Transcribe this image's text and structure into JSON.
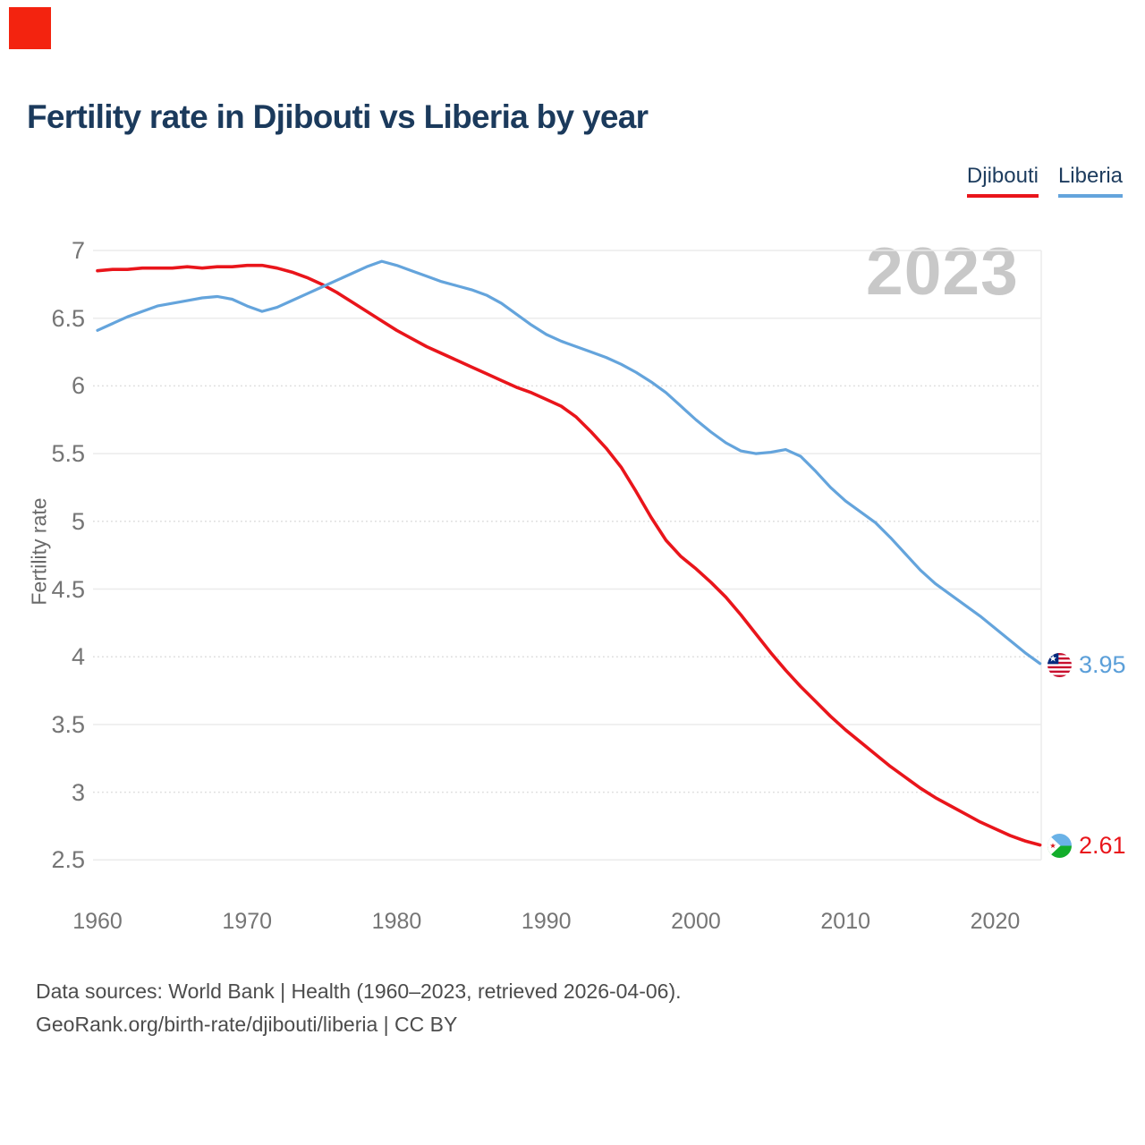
{
  "brand": {
    "color": "#f3230f"
  },
  "header": {
    "title": "Fertility rate in Djibouti vs Liberia by year"
  },
  "legend": {
    "items": [
      {
        "label": "Djibouti",
        "color": "#e9151b"
      },
      {
        "label": "Liberia",
        "color": "#64a4dc"
      }
    ]
  },
  "watermark": "2023",
  "end_labels": {
    "liberia": "3.95",
    "djibouti": "2.61"
  },
  "footer": {
    "line1": "Data sources: World Bank | Health (1960–2023, retrieved 2026-04-06).",
    "line2": "GeoRank.org/birth-rate/djibouti/liberia | CC BY"
  },
  "chart_data": {
    "type": "line",
    "title": "Fertility rate in Djibouti vs Liberia by year",
    "xlabel": "",
    "ylabel": "Fertility rate",
    "ylim": [
      2.5,
      7
    ],
    "grid": true,
    "legend_position": "top-right",
    "yticks": [
      7,
      6.5,
      6,
      5.5,
      5,
      4.5,
      4,
      3.5,
      3,
      2.5
    ],
    "xticks": [
      1960,
      1970,
      1980,
      1990,
      2000,
      2010,
      2020
    ],
    "x": [
      1960,
      1961,
      1962,
      1963,
      1964,
      1965,
      1966,
      1967,
      1968,
      1969,
      1970,
      1971,
      1972,
      1973,
      1974,
      1975,
      1976,
      1977,
      1978,
      1979,
      1980,
      1981,
      1982,
      1983,
      1984,
      1985,
      1986,
      1987,
      1988,
      1989,
      1990,
      1991,
      1992,
      1993,
      1994,
      1995,
      1996,
      1997,
      1998,
      1999,
      2000,
      2001,
      2002,
      2003,
      2004,
      2005,
      2006,
      2007,
      2008,
      2009,
      2010,
      2011,
      2012,
      2013,
      2014,
      2015,
      2016,
      2017,
      2018,
      2019,
      2020,
      2021,
      2022,
      2023
    ],
    "series": [
      {
        "name": "Djibouti",
        "color": "#e9151b",
        "values": [
          6.85,
          6.86,
          6.86,
          6.87,
          6.87,
          6.87,
          6.88,
          6.87,
          6.88,
          6.88,
          6.89,
          6.89,
          6.87,
          6.84,
          6.8,
          6.75,
          6.69,
          6.62,
          6.55,
          6.48,
          6.41,
          6.35,
          6.29,
          6.24,
          6.19,
          6.14,
          6.09,
          6.04,
          5.99,
          5.95,
          5.9,
          5.85,
          5.77,
          5.66,
          5.54,
          5.4,
          5.22,
          5.03,
          4.86,
          4.74,
          4.65,
          4.55,
          4.44,
          4.31,
          4.17,
          4.03,
          3.9,
          3.78,
          3.67,
          3.56,
          3.46,
          3.37,
          3.28,
          3.19,
          3.11,
          3.03,
          2.96,
          2.9,
          2.84,
          2.78,
          2.73,
          2.68,
          2.64,
          2.61
        ]
      },
      {
        "name": "Liberia",
        "color": "#64a4dc",
        "values": [
          6.41,
          6.46,
          6.51,
          6.55,
          6.59,
          6.61,
          6.63,
          6.65,
          6.66,
          6.64,
          6.59,
          6.55,
          6.58,
          6.63,
          6.68,
          6.73,
          6.78,
          6.83,
          6.88,
          6.92,
          6.89,
          6.85,
          6.81,
          6.77,
          6.74,
          6.71,
          6.67,
          6.61,
          6.53,
          6.45,
          6.38,
          6.33,
          6.29,
          6.25,
          6.21,
          6.16,
          6.1,
          6.03,
          5.95,
          5.85,
          5.75,
          5.66,
          5.58,
          5.52,
          5.5,
          5.51,
          5.53,
          5.48,
          5.37,
          5.25,
          5.15,
          5.07,
          4.99,
          4.88,
          4.76,
          4.64,
          4.54,
          4.46,
          4.38,
          4.3,
          4.21,
          4.12,
          4.03,
          3.95
        ]
      }
    ]
  }
}
